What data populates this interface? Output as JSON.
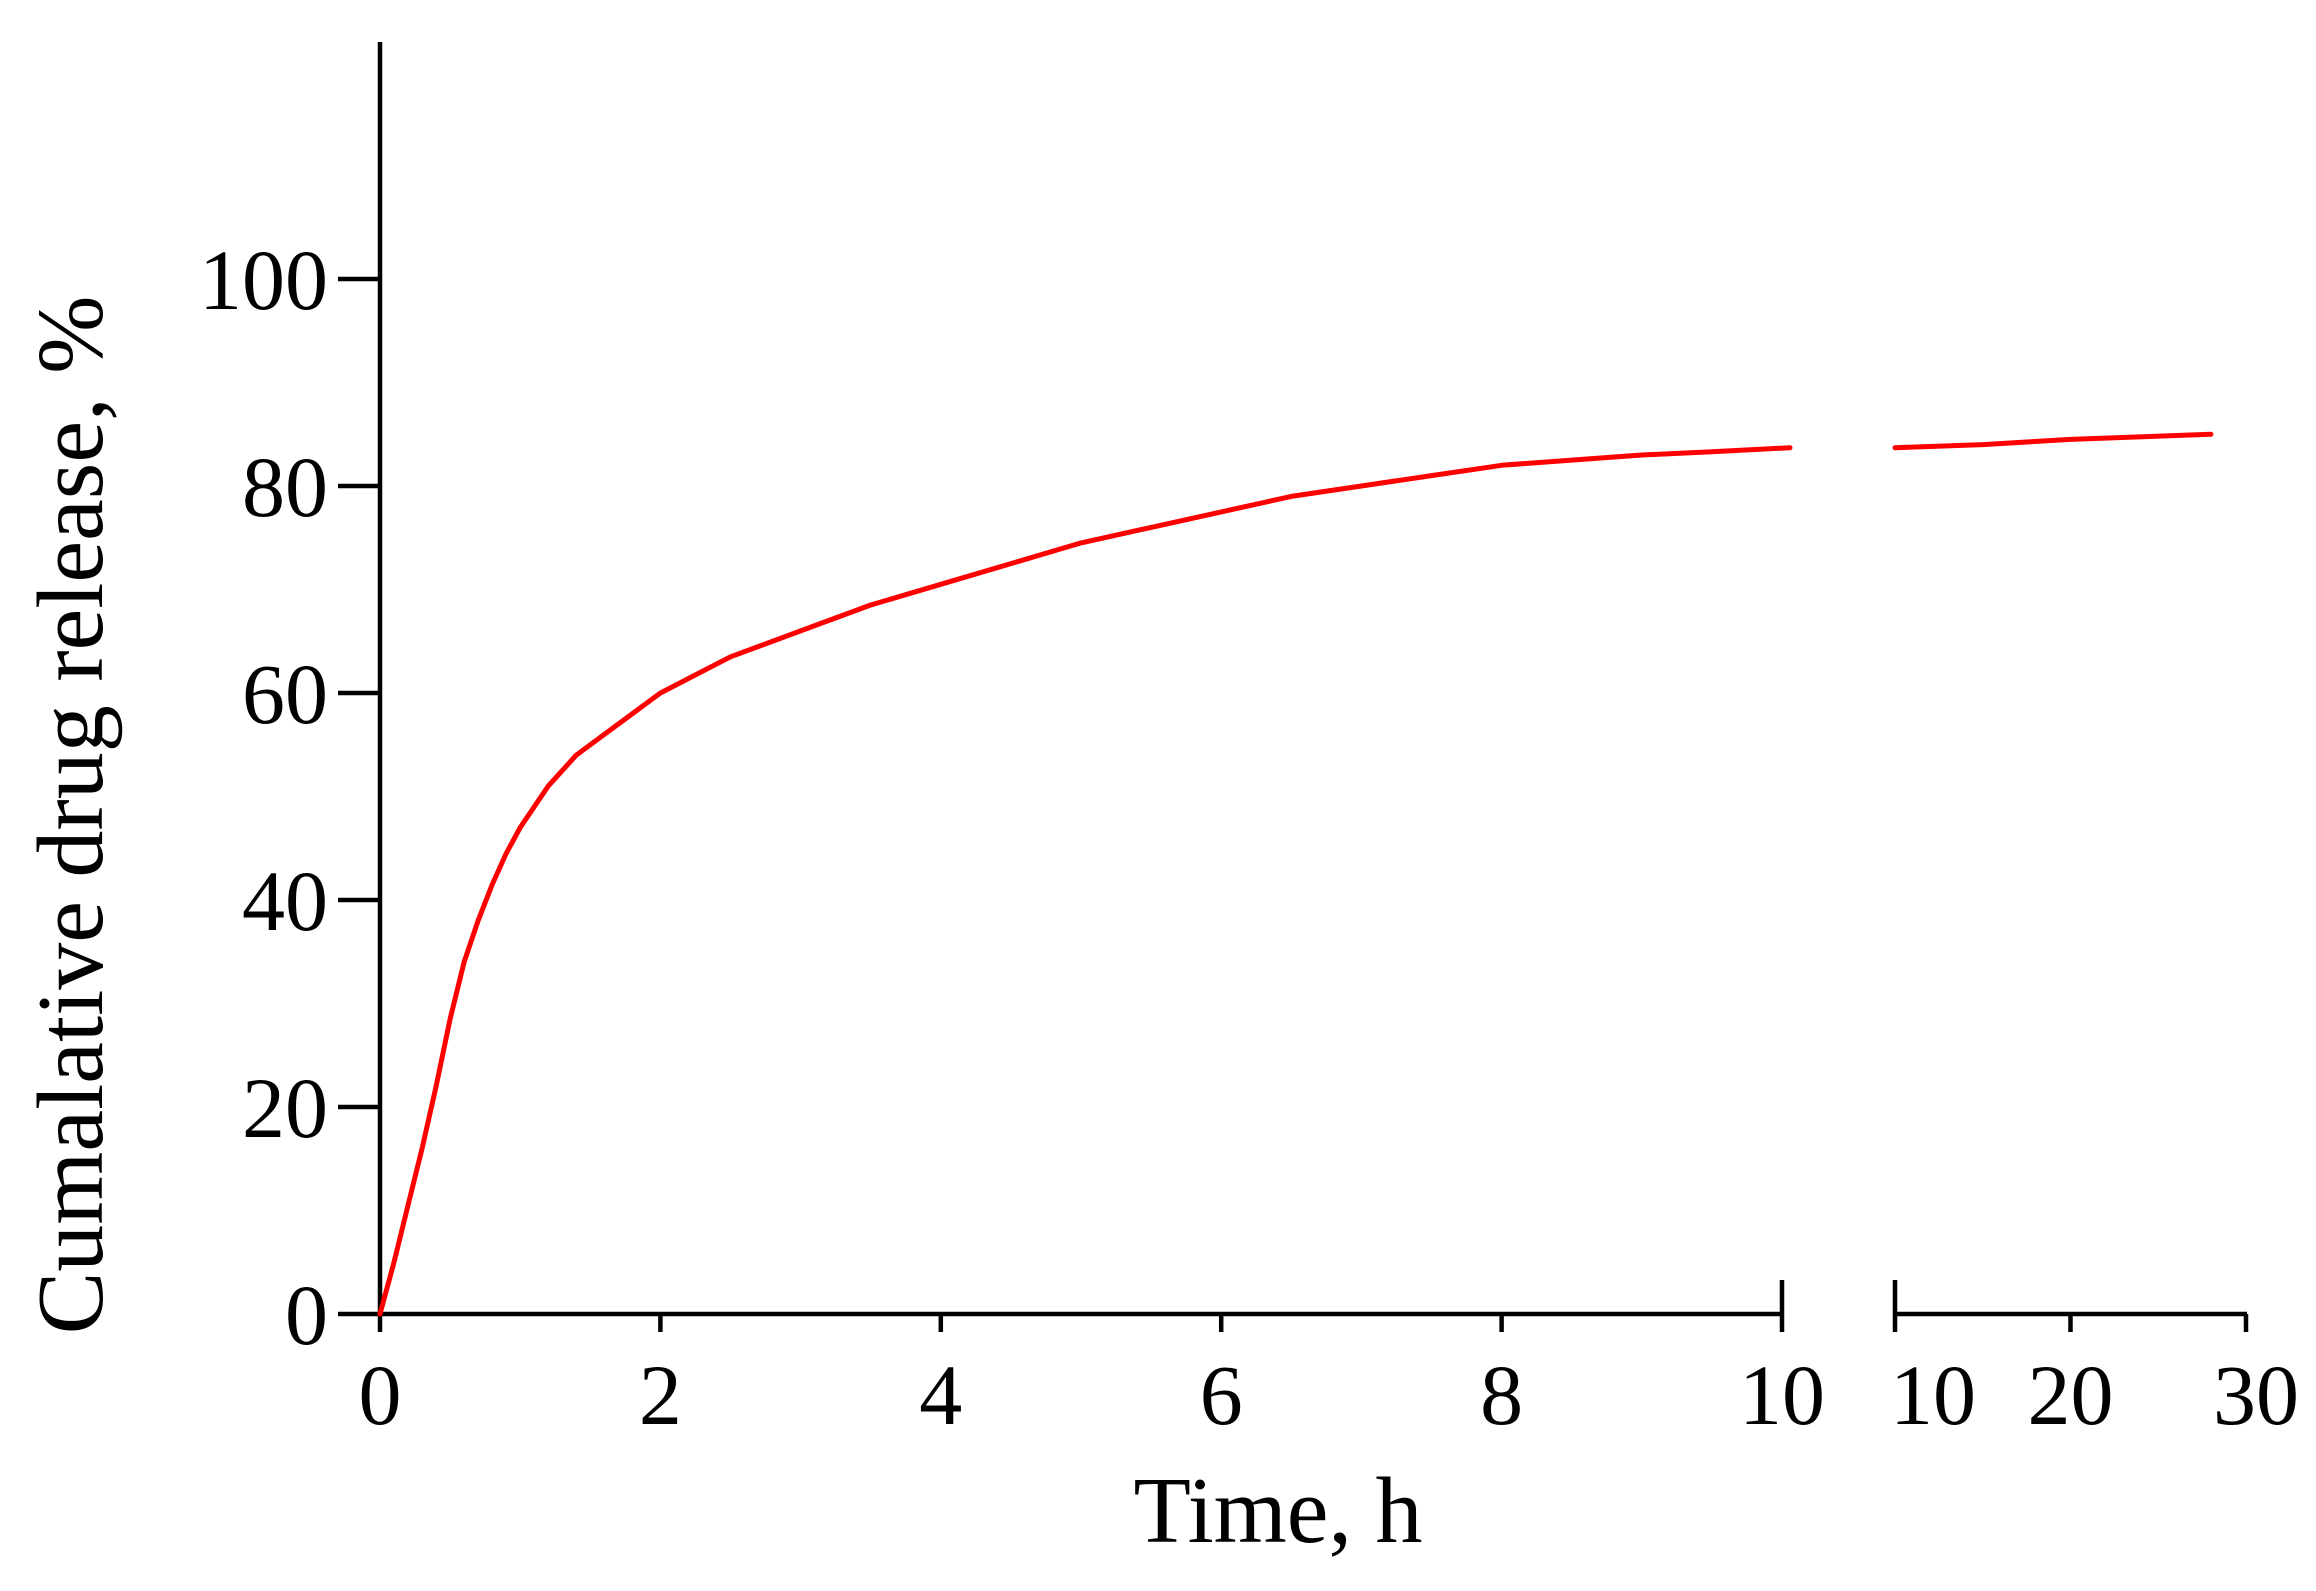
{
  "chart_data": {
    "type": "line",
    "title": "",
    "xlabel": "Time, h",
    "ylabel": "Cumalative drug release, %",
    "ylim": [
      0,
      120
    ],
    "yticks": [
      0,
      20,
      40,
      60,
      80,
      100
    ],
    "grid": false,
    "broken_x_axis": true,
    "segments": [
      {
        "xlim": [
          0,
          10
        ],
        "xticks": [
          0,
          2,
          4,
          6,
          8,
          10
        ]
      },
      {
        "xlim": [
          10,
          30
        ],
        "xticks": [
          10,
          20,
          30
        ]
      }
    ],
    "series": [
      {
        "color": "#ff0000",
        "points": [
          [
            0,
            0
          ],
          [
            0.1,
            5
          ],
          [
            0.2,
            10.5
          ],
          [
            0.3,
            16
          ],
          [
            0.4,
            22
          ],
          [
            0.5,
            28.5
          ],
          [
            0.6,
            34
          ],
          [
            0.7,
            38
          ],
          [
            0.8,
            41.5
          ],
          [
            0.9,
            44.5
          ],
          [
            1.0,
            47
          ],
          [
            1.2,
            51
          ],
          [
            1.4,
            54
          ],
          [
            1.6,
            56
          ],
          [
            1.8,
            58
          ],
          [
            2.0,
            60
          ],
          [
            2.5,
            63.5
          ],
          [
            3.0,
            66
          ],
          [
            3.5,
            68.5
          ],
          [
            4.0,
            70.5
          ],
          [
            4.5,
            72.5
          ],
          [
            5.0,
            74.5
          ],
          [
            5.5,
            76
          ],
          [
            6.0,
            77.5
          ],
          [
            6.5,
            79
          ],
          [
            7.0,
            80
          ],
          [
            7.5,
            81
          ],
          [
            8.0,
            82
          ],
          [
            8.5,
            82.5
          ],
          [
            9.0,
            83
          ],
          [
            9.5,
            83.3
          ],
          [
            10.0,
            83.7
          ],
          [
            15,
            84
          ],
          [
            20,
            84.5
          ],
          [
            28,
            85
          ]
        ]
      }
    ]
  }
}
